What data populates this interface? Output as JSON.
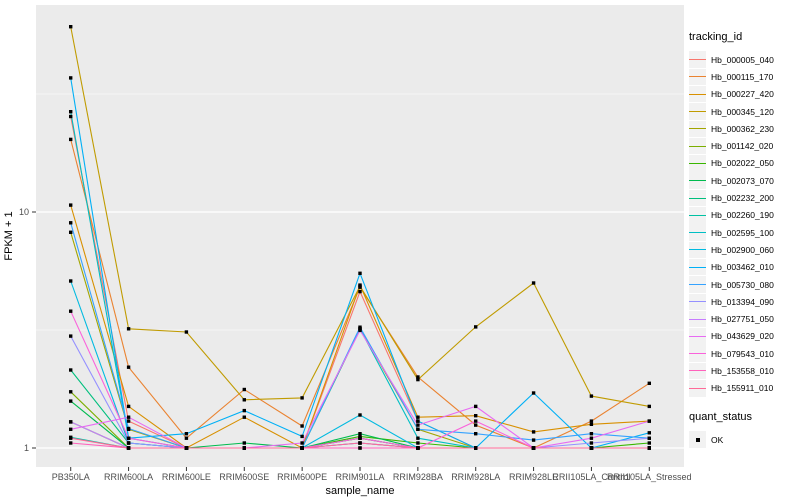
{
  "chart_data": {
    "type": "line",
    "title": "",
    "xlabel": "sample_name",
    "ylabel": "FPKM + 1",
    "y_scale": "log10",
    "ylim": [
      0.83,
      75
    ],
    "y_tick_labels": [
      "1",
      "10"
    ],
    "y_tick_values": [
      1,
      10
    ],
    "y_minor_values": [
      3.162,
      31.62
    ],
    "grid": true,
    "panel_bg": "#EBEBEB",
    "grid_color": "#FFFFFF",
    "point_color": "#000000",
    "tick_label_color": "#4D4D4D",
    "legend_title": "tracking_id",
    "legend2_title": "quant_status",
    "legend2_items": [
      {
        "label": "OK",
        "symbol": "black-square"
      }
    ],
    "categories": [
      "PB350LA",
      "RRIM600LA",
      "RRIM600LE",
      "RRIM600SE",
      "RRIM600PE",
      "RRIM901LA",
      "RRIM928BA",
      "RRIM928LA",
      "RRIM928LE",
      "RRII105LA_Control",
      "RRII105LA_Stressed"
    ],
    "series": [
      {
        "name": "Hb_000005_040",
        "color": "#F8766D",
        "values": [
          25.4,
          1.3,
          1.0,
          1.0,
          1.0,
          4.6,
          1.3,
          1.0,
          1.0,
          1.0,
          1.0
        ]
      },
      {
        "name": "Hb_000115_170",
        "color": "#EA8331",
        "values": [
          20.3,
          2.2,
          1.1,
          1.77,
          1.24,
          4.8,
          2.0,
          1.25,
          1.0,
          1.3,
          1.88
        ]
      },
      {
        "name": "Hb_000227_420",
        "color": "#D89000",
        "values": [
          10.7,
          1.5,
          1.0,
          1.35,
          1.0,
          4.9,
          1.35,
          1.37,
          1.17,
          1.26,
          1.3
        ]
      },
      {
        "name": "Hb_000345_120",
        "color": "#C09B00",
        "values": [
          61.0,
          3.2,
          3.1,
          1.6,
          1.63,
          4.85,
          1.95,
          3.26,
          5.0,
          1.66,
          1.5
        ]
      },
      {
        "name": "Hb_000362_230",
        "color": "#A3A500",
        "values": [
          8.2,
          1.2,
          1.0,
          1.0,
          1.0,
          3.2,
          1.2,
          1.0,
          1.0,
          1.0,
          1.0
        ]
      },
      {
        "name": "Hb_001142_020",
        "color": "#7CAE00",
        "values": [
          1.73,
          1.0,
          1.0,
          1.0,
          1.0,
          1.1,
          1.0,
          1.0,
          1.0,
          1.0,
          1.0
        ]
      },
      {
        "name": "Hb_002022_050",
        "color": "#39B600",
        "values": [
          1.29,
          1.0,
          1.0,
          1.0,
          1.0,
          1.12,
          1.05,
          1.0,
          1.0,
          1.0,
          1.05
        ]
      },
      {
        "name": "Hb_002073_070",
        "color": "#00BB4E",
        "values": [
          1.58,
          1.0,
          1.0,
          1.05,
          1.0,
          1.15,
          1.0,
          1.0,
          1.0,
          1.0,
          1.0
        ]
      },
      {
        "name": "Hb_002232_200",
        "color": "#00BF7D",
        "values": [
          2.14,
          1.05,
          1.0,
          1.0,
          1.0,
          1.1,
          1.0,
          1.0,
          1.0,
          1.0,
          1.0
        ]
      },
      {
        "name": "Hb_002260_190",
        "color": "#00C1A3",
        "values": [
          1.11,
          1.0,
          1.0,
          1.0,
          1.0,
          1.05,
          1.0,
          1.0,
          1.0,
          1.0,
          1.0
        ]
      },
      {
        "name": "Hb_002595_100",
        "color": "#00BFC4",
        "values": [
          26.6,
          1.1,
          1.0,
          1.0,
          1.0,
          3.2,
          1.1,
          1.0,
          1.0,
          1.0,
          1.0
        ]
      },
      {
        "name": "Hb_002900_060",
        "color": "#00BAE0",
        "values": [
          5.1,
          1.05,
          1.0,
          1.0,
          1.0,
          1.38,
          1.0,
          1.0,
          1.0,
          1.0,
          1.0
        ]
      },
      {
        "name": "Hb_003462_010",
        "color": "#00B0F6",
        "values": [
          37.0,
          1.1,
          1.15,
          1.44,
          1.12,
          5.5,
          1.3,
          1.0,
          1.71,
          1.0,
          1.16
        ]
      },
      {
        "name": "Hb_005730_080",
        "color": "#35A2FF",
        "values": [
          9.0,
          1.21,
          1.0,
          1.0,
          1.0,
          3.25,
          1.2,
          1.15,
          1.08,
          1.15,
          1.1
        ]
      },
      {
        "name": "Hb_013394_090",
        "color": "#9590FF",
        "values": [
          2.98,
          1.05,
          1.0,
          1.0,
          1.0,
          1.05,
          1.0,
          1.0,
          1.0,
          1.05,
          1.1
        ]
      },
      {
        "name": "Hb_027751_050",
        "color": "#C77CFF",
        "values": [
          1.29,
          1.0,
          1.0,
          1.0,
          1.0,
          1.0,
          1.0,
          1.0,
          1.0,
          1.0,
          1.0
        ]
      },
      {
        "name": "Hb_043629_020",
        "color": "#E76BF3",
        "values": [
          1.2,
          1.35,
          1.0,
          1.0,
          1.05,
          3.15,
          1.25,
          1.5,
          1.0,
          1.1,
          1.3
        ]
      },
      {
        "name": "Hb_079543_010",
        "color": "#FA62DB",
        "values": [
          3.8,
          1.1,
          1.0,
          1.0,
          1.0,
          1.1,
          1.0,
          1.3,
          1.0,
          1.0,
          1.0
        ]
      },
      {
        "name": "Hb_153558_010",
        "color": "#FF62BC",
        "values": [
          1.05,
          1.0,
          1.0,
          1.0,
          1.0,
          1.0,
          1.0,
          1.0,
          1.0,
          1.0,
          1.0
        ]
      },
      {
        "name": "Hb_155911_010",
        "color": "#FF6A98",
        "values": [
          1.1,
          1.0,
          1.0,
          1.0,
          1.0,
          1.05,
          1.0,
          1.0,
          1.0,
          1.0,
          1.0
        ]
      }
    ]
  }
}
